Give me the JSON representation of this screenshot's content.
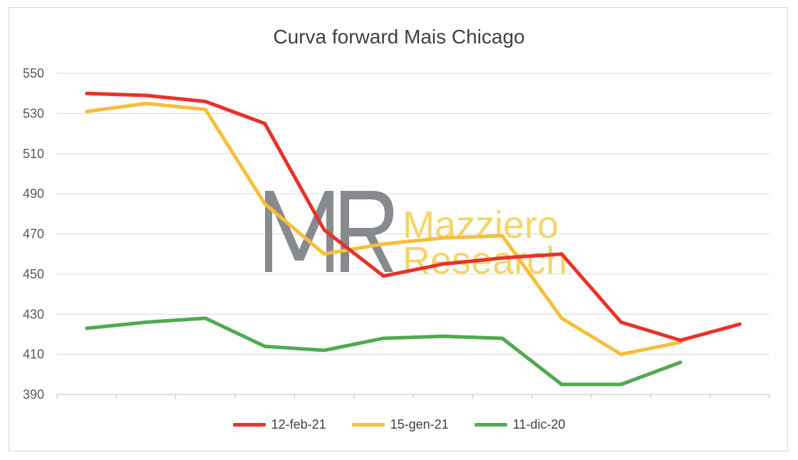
{
  "chart_data": {
    "type": "line",
    "title": "Curva forward Mais Chicago",
    "xlabel": "",
    "ylabel": "",
    "ylim": [
      390,
      550
    ],
    "yticks": [
      550,
      530,
      510,
      490,
      470,
      450,
      430,
      410,
      390
    ],
    "grid": true,
    "legend_position": "bottom",
    "x": [
      1,
      2,
      3,
      4,
      5,
      6,
      7,
      8,
      9,
      10,
      11,
      12
    ],
    "series": [
      {
        "name": "12-feb-21",
        "color": "#e8322a",
        "values": [
          540,
          539,
          536,
          525,
          472,
          449,
          455,
          458,
          460,
          426,
          417,
          425
        ]
      },
      {
        "name": "15-gen-21",
        "color": "#f6be3c",
        "values": [
          531,
          535,
          532,
          485,
          460,
          465,
          468,
          469,
          428,
          410,
          416,
          null
        ]
      },
      {
        "name": "11-dic-20",
        "color": "#4faa50",
        "values": [
          423,
          426,
          428,
          414,
          412,
          418,
          419,
          418,
          395,
          395,
          406,
          null
        ]
      }
    ]
  },
  "watermark": {
    "logo_text": "MR",
    "brand_line1": "Mazziero",
    "brand_line2": "Research",
    "logo_color": "#7b7e82",
    "brand_color": "#f2d15a"
  }
}
